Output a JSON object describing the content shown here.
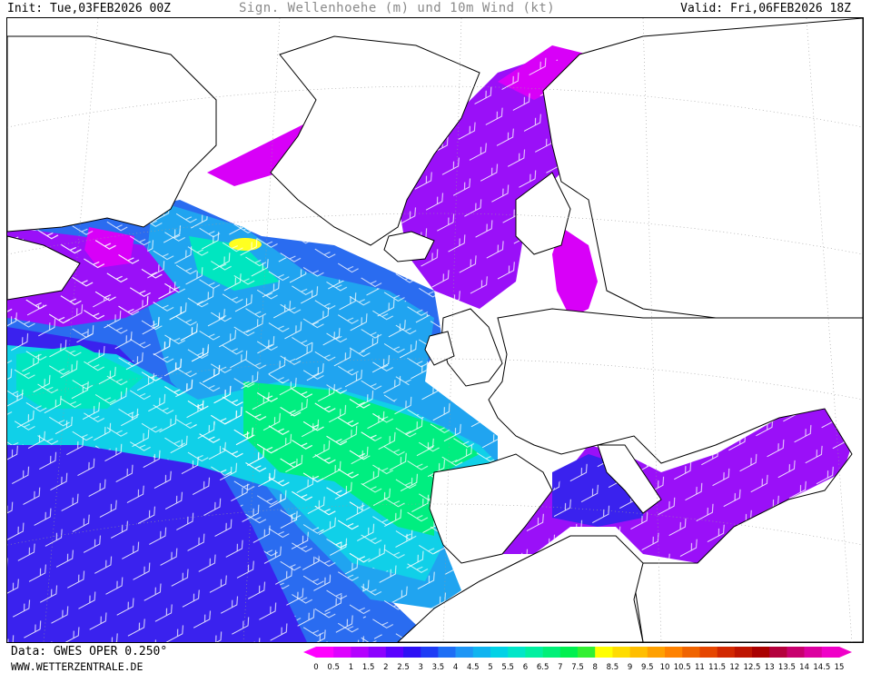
{
  "header": {
    "init": "Init: Tue,03FEB2026 00Z",
    "title": "Sign. Wellenhoehe (m) und 10m Wind (kt)",
    "valid": "Valid: Fri,06FEB2026 18Z"
  },
  "footer": {
    "source": "Data: GWES OPER 0.250°",
    "site": "WWW.WETTERZENTRALE.DE"
  },
  "legend": {
    "labels": [
      "0",
      "0.5",
      "1",
      "1.5",
      "2",
      "2.5",
      "3",
      "3.5",
      "4",
      "4.5",
      "5",
      "5.5",
      "6",
      "6.5",
      "7",
      "7.5",
      "8",
      "8.5",
      "9",
      "9.5",
      "10",
      "10.5",
      "11",
      "11.5",
      "12",
      "12.5",
      "13",
      "13.5",
      "14",
      "14.5",
      "15"
    ],
    "colors": [
      "#ff00ff",
      "#dd00ff",
      "#b400ff",
      "#8c00ff",
      "#5a00ff",
      "#2d10f5",
      "#1e3cf5",
      "#1e6ef5",
      "#1e96f5",
      "#10b4f0",
      "#00d2e6",
      "#00e6c8",
      "#00f0a0",
      "#00f078",
      "#00f050",
      "#32f032",
      "#ffff00",
      "#ffdc00",
      "#ffbe00",
      "#ffa000",
      "#ff8200",
      "#f06400",
      "#e64600",
      "#d22800",
      "#be1400",
      "#aa0000",
      "#b4003c",
      "#c8006e",
      "#dc00a0",
      "#f000c8"
    ]
  },
  "map": {
    "sea_colors": {
      "calm_purple": "#d800f8",
      "violet": "#9a10f8",
      "deep_blue": "#3a22ee",
      "blue": "#2a6cf0",
      "light_blue": "#20a4f0",
      "cyan": "#10d0e8",
      "aqua": "#00e6c0",
      "green": "#00ee80",
      "yellow": "#ffff20"
    },
    "land_color": "#ffffff",
    "coast_color": "#000000",
    "wind_barb_color": "#ffffff"
  }
}
